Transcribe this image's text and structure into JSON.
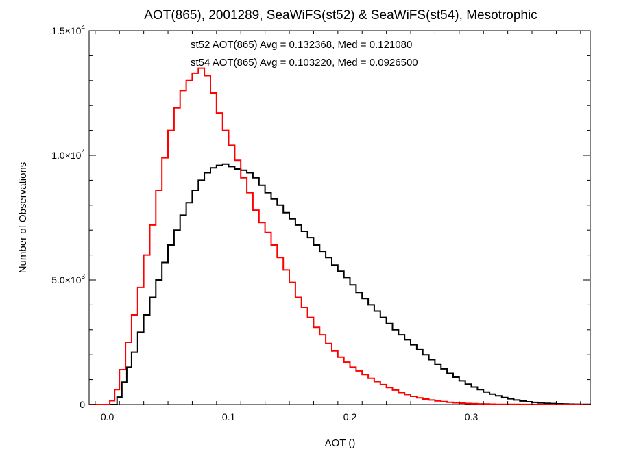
{
  "chart_data": {
    "type": "line",
    "step": true,
    "title": "AOT(865), 2001289, SeaWiFS(st52) & SeaWiFS(st54), Mesotrophic",
    "xlabel": "AOT ()",
    "ylabel": "Number of Observations",
    "xlim": [
      -0.015,
      0.398
    ],
    "ylim": [
      0,
      15000
    ],
    "grid": false,
    "x_ticks": [
      {
        "value": 0.0,
        "label": "0.0"
      },
      {
        "value": 0.1,
        "label": "0.1"
      },
      {
        "value": 0.2,
        "label": "0.2"
      },
      {
        "value": 0.3,
        "label": "0.3"
      }
    ],
    "y_ticks": [
      {
        "value": 0,
        "mant": "0",
        "exp": ""
      },
      {
        "value": 5000,
        "mant": "5.0×10",
        "exp": "3"
      },
      {
        "value": 10000,
        "mant": "1.0×10",
        "exp": "4"
      },
      {
        "value": 15000,
        "mant": "1.5×10",
        "exp": "4"
      }
    ],
    "annotations": [
      {
        "text": "st52 AOT(865) Avg = 0.132368, Med = 0.121080",
        "color": "#000000"
      },
      {
        "text": "st54 AOT(865) Avg = 0.103220, Med = 0.0926500",
        "color": "#ff0000"
      }
    ],
    "series": [
      {
        "color": "#000000",
        "points": [
          [
            -0.015,
            0
          ],
          [
            0.005,
            0
          ],
          [
            0.008,
            300
          ],
          [
            0.012,
            900
          ],
          [
            0.016,
            1500
          ],
          [
            0.02,
            2100
          ],
          [
            0.025,
            2900
          ],
          [
            0.03,
            3600
          ],
          [
            0.035,
            4300
          ],
          [
            0.04,
            5000
          ],
          [
            0.045,
            5700
          ],
          [
            0.05,
            6400
          ],
          [
            0.055,
            7000
          ],
          [
            0.06,
            7600
          ],
          [
            0.065,
            8100
          ],
          [
            0.07,
            8600
          ],
          [
            0.075,
            9000
          ],
          [
            0.08,
            9300
          ],
          [
            0.085,
            9500
          ],
          [
            0.09,
            9600
          ],
          [
            0.095,
            9650
          ],
          [
            0.1,
            9550
          ],
          [
            0.105,
            9450
          ],
          [
            0.11,
            9400
          ],
          [
            0.115,
            9300
          ],
          [
            0.12,
            9100
          ],
          [
            0.125,
            8800
          ],
          [
            0.13,
            8500
          ],
          [
            0.135,
            8250
          ],
          [
            0.14,
            8000
          ],
          [
            0.145,
            7700
          ],
          [
            0.15,
            7450
          ],
          [
            0.155,
            7200
          ],
          [
            0.16,
            6950
          ],
          [
            0.165,
            6700
          ],
          [
            0.17,
            6400
          ],
          [
            0.175,
            6150
          ],
          [
            0.18,
            5900
          ],
          [
            0.185,
            5600
          ],
          [
            0.19,
            5350
          ],
          [
            0.195,
            5100
          ],
          [
            0.2,
            4800
          ],
          [
            0.205,
            4500
          ],
          [
            0.21,
            4250
          ],
          [
            0.215,
            4000
          ],
          [
            0.22,
            3750
          ],
          [
            0.225,
            3500
          ],
          [
            0.23,
            3250
          ],
          [
            0.235,
            3000
          ],
          [
            0.24,
            2800
          ],
          [
            0.245,
            2600
          ],
          [
            0.25,
            2400
          ],
          [
            0.255,
            2200
          ],
          [
            0.26,
            2000
          ],
          [
            0.265,
            1800
          ],
          [
            0.27,
            1600
          ],
          [
            0.275,
            1430
          ],
          [
            0.28,
            1250
          ],
          [
            0.285,
            1100
          ],
          [
            0.29,
            950
          ],
          [
            0.295,
            820
          ],
          [
            0.3,
            700
          ],
          [
            0.305,
            600
          ],
          [
            0.31,
            500
          ],
          [
            0.315,
            420
          ],
          [
            0.32,
            350
          ],
          [
            0.325,
            280
          ],
          [
            0.33,
            230
          ],
          [
            0.335,
            180
          ],
          [
            0.34,
            140
          ],
          [
            0.345,
            110
          ],
          [
            0.35,
            85
          ],
          [
            0.355,
            65
          ],
          [
            0.36,
            50
          ],
          [
            0.365,
            38
          ],
          [
            0.37,
            28
          ],
          [
            0.375,
            20
          ],
          [
            0.38,
            14
          ],
          [
            0.385,
            10
          ],
          [
            0.39,
            6
          ],
          [
            0.398,
            3
          ]
        ]
      },
      {
        "color": "#ff0000",
        "points": [
          [
            -0.015,
            0
          ],
          [
            -0.002,
            0
          ],
          [
            0.002,
            150
          ],
          [
            0.006,
            600
          ],
          [
            0.01,
            1400
          ],
          [
            0.015,
            2500
          ],
          [
            0.02,
            3600
          ],
          [
            0.025,
            4700
          ],
          [
            0.03,
            6000
          ],
          [
            0.035,
            7200
          ],
          [
            0.04,
            8600
          ],
          [
            0.045,
            9900
          ],
          [
            0.05,
            11000
          ],
          [
            0.055,
            11900
          ],
          [
            0.06,
            12600
          ],
          [
            0.065,
            13000
          ],
          [
            0.07,
            13300
          ],
          [
            0.075,
            13500
          ],
          [
            0.08,
            13200
          ],
          [
            0.085,
            12500
          ],
          [
            0.09,
            11700
          ],
          [
            0.095,
            11000
          ],
          [
            0.1,
            10400
          ],
          [
            0.105,
            9800
          ],
          [
            0.11,
            9100
          ],
          [
            0.115,
            8500
          ],
          [
            0.12,
            7800
          ],
          [
            0.125,
            7300
          ],
          [
            0.13,
            6900
          ],
          [
            0.135,
            6400
          ],
          [
            0.14,
            5900
          ],
          [
            0.145,
            5400
          ],
          [
            0.15,
            4900
          ],
          [
            0.155,
            4300
          ],
          [
            0.16,
            3900
          ],
          [
            0.165,
            3500
          ],
          [
            0.17,
            3100
          ],
          [
            0.175,
            2800
          ],
          [
            0.18,
            2450
          ],
          [
            0.185,
            2150
          ],
          [
            0.19,
            1900
          ],
          [
            0.195,
            1700
          ],
          [
            0.2,
            1500
          ],
          [
            0.205,
            1350
          ],
          [
            0.21,
            1200
          ],
          [
            0.215,
            1050
          ],
          [
            0.22,
            920
          ],
          [
            0.225,
            800
          ],
          [
            0.23,
            680
          ],
          [
            0.235,
            580
          ],
          [
            0.24,
            480
          ],
          [
            0.245,
            400
          ],
          [
            0.25,
            330
          ],
          [
            0.255,
            270
          ],
          [
            0.26,
            220
          ],
          [
            0.265,
            180
          ],
          [
            0.27,
            145
          ],
          [
            0.275,
            115
          ],
          [
            0.28,
            90
          ],
          [
            0.285,
            70
          ],
          [
            0.29,
            55
          ],
          [
            0.295,
            42
          ],
          [
            0.3,
            32
          ],
          [
            0.305,
            24
          ],
          [
            0.31,
            18
          ],
          [
            0.315,
            13
          ],
          [
            0.32,
            9
          ],
          [
            0.33,
            5
          ],
          [
            0.34,
            3
          ],
          [
            0.36,
            1
          ],
          [
            0.398,
            0
          ]
        ]
      }
    ]
  }
}
